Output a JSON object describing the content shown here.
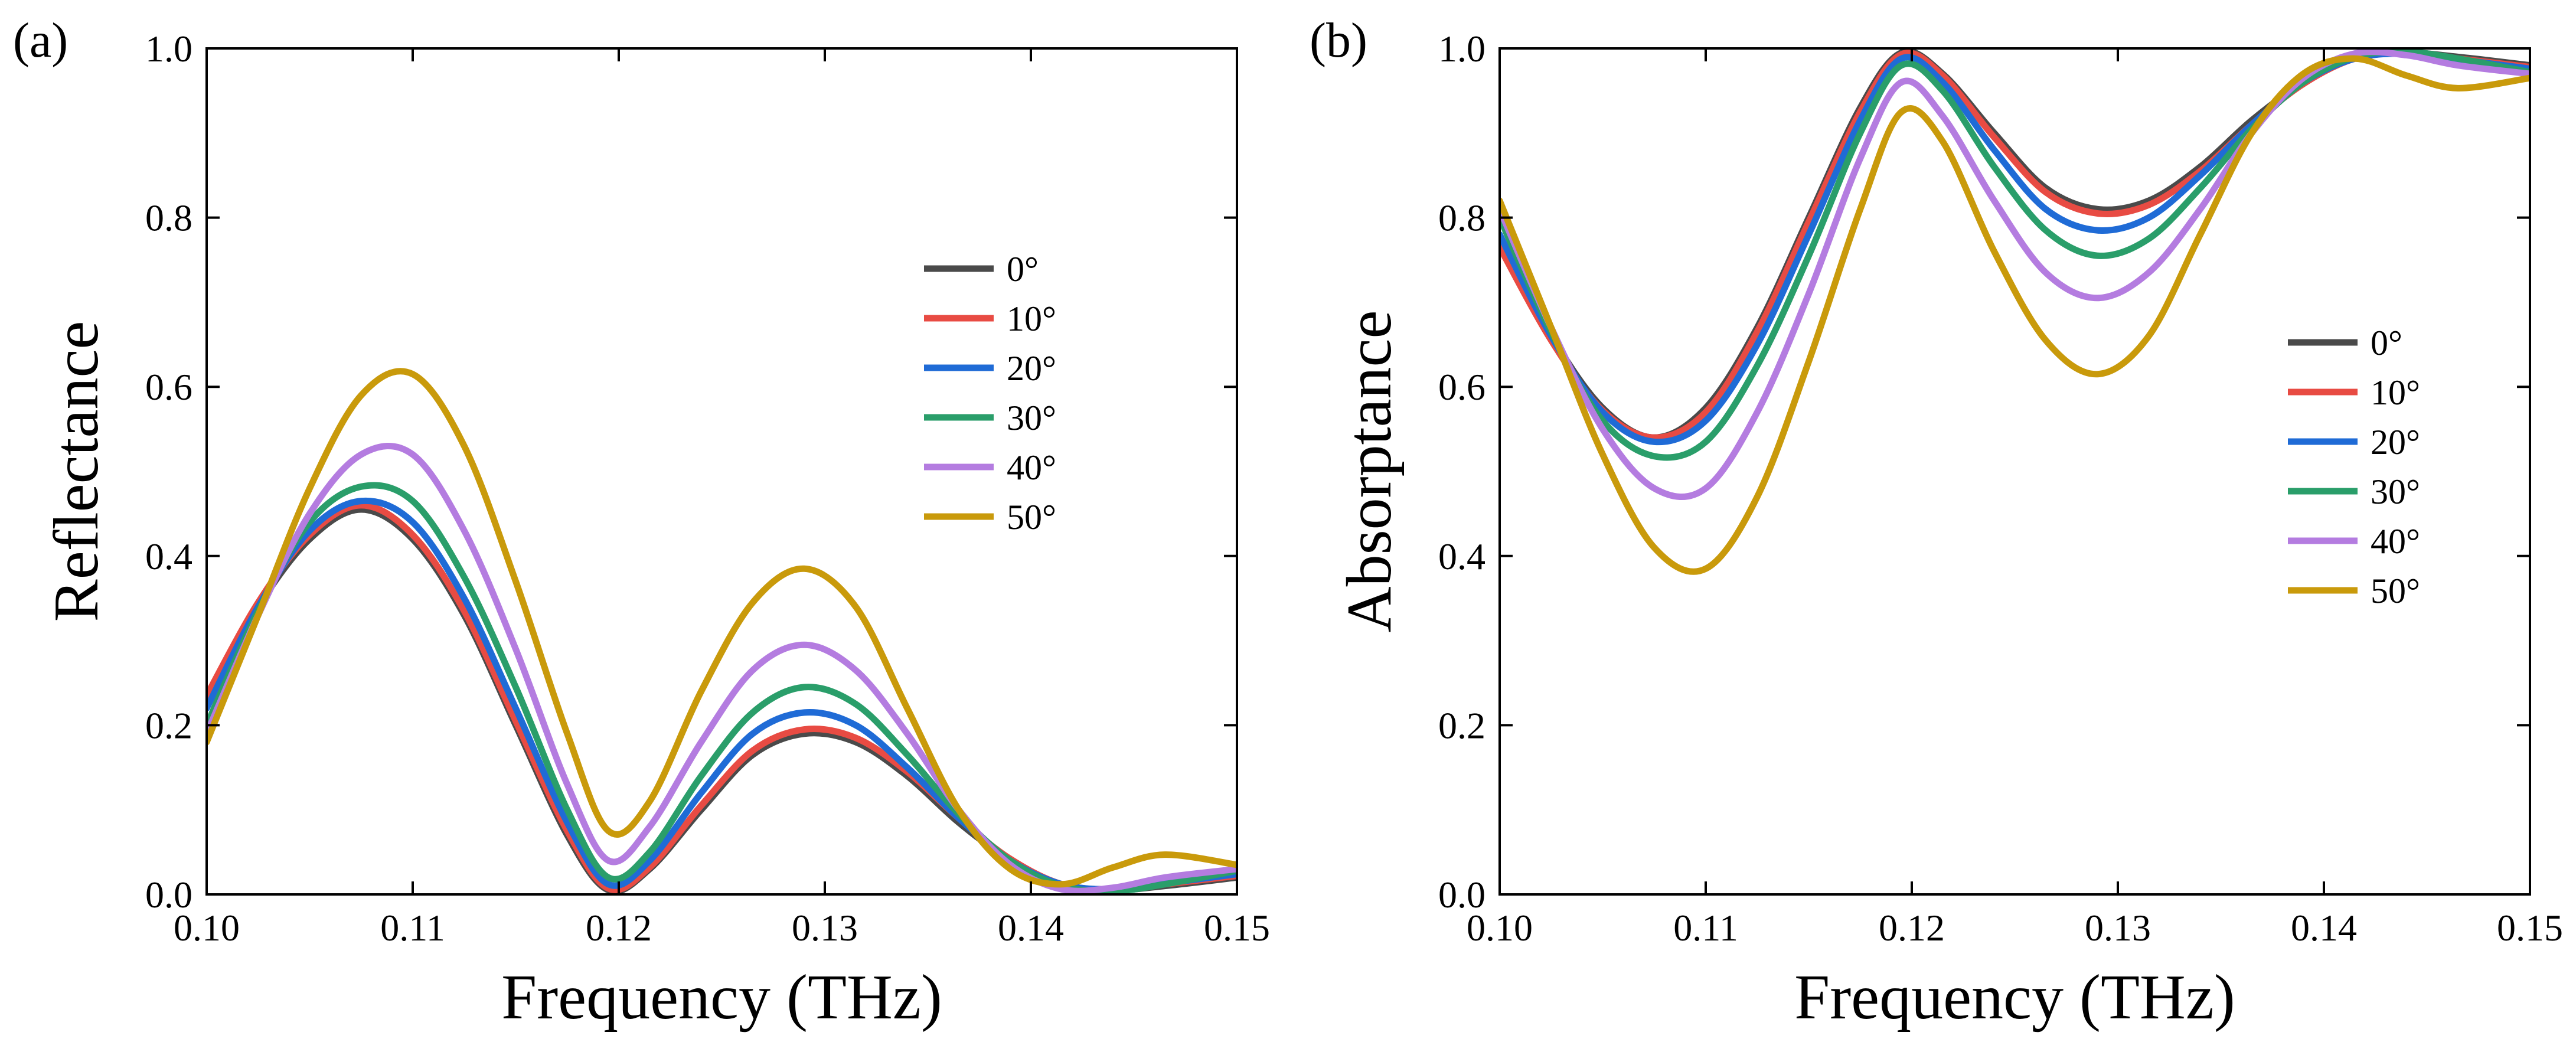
{
  "chart_data": [
    {
      "type": "line",
      "panel_label": "(a)",
      "xlabel": "Frequency (THz)",
      "ylabel": "Reflectance",
      "xlim": [
        0.1,
        0.15
      ],
      "ylim": [
        0.0,
        1.0
      ],
      "x_ticks": [
        "0.10",
        "0.11",
        "0.12",
        "0.13",
        "0.14",
        "0.15"
      ],
      "y_ticks": [
        "0.0",
        "0.2",
        "0.4",
        "0.6",
        "0.8",
        "1.0"
      ],
      "legend_position": "right",
      "series": [
        {
          "name": "0°",
          "color": "#4a4a4a",
          "x": [
            0.1,
            0.1025,
            0.105,
            0.1075,
            0.11,
            0.1125,
            0.115,
            0.1175,
            0.1195,
            0.1215,
            0.124,
            0.1265,
            0.129,
            0.1315,
            0.134,
            0.1365,
            0.139,
            0.1415,
            0.144,
            0.1465,
            0.15
          ],
          "y": [
            0.23,
            0.34,
            0.42,
            0.455,
            0.42,
            0.33,
            0.2,
            0.07,
            0.005,
            0.03,
            0.1,
            0.165,
            0.19,
            0.18,
            0.14,
            0.085,
            0.04,
            0.01,
            0.005,
            0.01,
            0.02
          ]
        },
        {
          "name": "10°",
          "color": "#e84b43",
          "x": [
            0.1,
            0.1025,
            0.105,
            0.1075,
            0.11,
            0.1125,
            0.115,
            0.1175,
            0.1195,
            0.1215,
            0.124,
            0.1265,
            0.129,
            0.1315,
            0.134,
            0.1365,
            0.139,
            0.1415,
            0.144,
            0.1465,
            0.15
          ],
          "y": [
            0.235,
            0.345,
            0.425,
            0.46,
            0.425,
            0.335,
            0.205,
            0.075,
            0.007,
            0.032,
            0.105,
            0.17,
            0.195,
            0.185,
            0.145,
            0.09,
            0.042,
            0.012,
            0.006,
            0.012,
            0.022
          ]
        },
        {
          "name": "20°",
          "color": "#1f6bd6",
          "x": [
            0.1,
            0.1025,
            0.105,
            0.1075,
            0.11,
            0.1125,
            0.115,
            0.1175,
            0.1195,
            0.1215,
            0.124,
            0.1265,
            0.129,
            0.1315,
            0.134,
            0.1365,
            0.139,
            0.1415,
            0.144,
            0.1465,
            0.15
          ],
          "y": [
            0.22,
            0.34,
            0.43,
            0.465,
            0.44,
            0.35,
            0.22,
            0.085,
            0.012,
            0.04,
            0.12,
            0.19,
            0.215,
            0.2,
            0.15,
            0.09,
            0.04,
            0.012,
            0.006,
            0.013,
            0.024
          ]
        },
        {
          "name": "30°",
          "color": "#2a9e6a",
          "x": [
            0.1,
            0.1025,
            0.105,
            0.1075,
            0.11,
            0.1125,
            0.115,
            0.1175,
            0.1195,
            0.1215,
            0.124,
            0.1265,
            0.129,
            0.1315,
            0.134,
            0.1365,
            0.139,
            0.1415,
            0.144,
            0.1465,
            0.15
          ],
          "y": [
            0.2,
            0.335,
            0.44,
            0.482,
            0.465,
            0.375,
            0.245,
            0.1,
            0.02,
            0.05,
            0.14,
            0.215,
            0.245,
            0.225,
            0.165,
            0.095,
            0.04,
            0.01,
            0.004,
            0.012,
            0.028
          ]
        },
        {
          "name": "40°",
          "color": "#b47ce0",
          "x": [
            0.1,
            0.1025,
            0.105,
            0.1075,
            0.11,
            0.1125,
            0.115,
            0.1175,
            0.1195,
            0.1215,
            0.124,
            0.1265,
            0.129,
            0.1315,
            0.134,
            0.1365,
            0.139,
            0.1415,
            0.144,
            0.1465,
            0.15
          ],
          "y": [
            0.19,
            0.33,
            0.45,
            0.52,
            0.52,
            0.43,
            0.29,
            0.13,
            0.04,
            0.08,
            0.18,
            0.265,
            0.295,
            0.265,
            0.19,
            0.1,
            0.035,
            0.006,
            0.008,
            0.02,
            0.03
          ]
        },
        {
          "name": "50°",
          "color": "#c99a0b",
          "x": [
            0.1,
            0.1025,
            0.105,
            0.1075,
            0.11,
            0.1125,
            0.115,
            0.1175,
            0.1195,
            0.1215,
            0.124,
            0.1265,
            0.129,
            0.1315,
            0.134,
            0.1365,
            0.139,
            0.1415,
            0.144,
            0.1465,
            0.15
          ],
          "y": [
            0.18,
            0.33,
            0.48,
            0.59,
            0.615,
            0.53,
            0.37,
            0.19,
            0.075,
            0.11,
            0.24,
            0.345,
            0.385,
            0.34,
            0.22,
            0.1,
            0.03,
            0.012,
            0.032,
            0.047,
            0.035
          ]
        }
      ]
    },
    {
      "type": "line",
      "panel_label": "(b)",
      "xlabel": "Frequency (THz)",
      "ylabel": "Absorptance",
      "xlim": [
        0.1,
        0.15
      ],
      "ylim": [
        0.0,
        1.0
      ],
      "x_ticks": [
        "0.10",
        "0.11",
        "0.12",
        "0.13",
        "0.14",
        "0.15"
      ],
      "y_ticks": [
        "0.0",
        "0.2",
        "0.4",
        "0.6",
        "0.8",
        "1.0"
      ],
      "legend_position": "right",
      "series": [
        {
          "name": "0°",
          "color": "#4a4a4a",
          "x": [
            0.1,
            0.1025,
            0.105,
            0.1075,
            0.11,
            0.1125,
            0.115,
            0.1175,
            0.1195,
            0.1215,
            0.124,
            0.1265,
            0.129,
            0.1315,
            0.134,
            0.1365,
            0.139,
            0.1415,
            0.144,
            0.1465,
            0.15
          ],
          "y": [
            0.77,
            0.66,
            0.575,
            0.54,
            0.575,
            0.67,
            0.8,
            0.93,
            0.995,
            0.97,
            0.9,
            0.835,
            0.81,
            0.82,
            0.86,
            0.915,
            0.96,
            0.99,
            0.995,
            0.99,
            0.98
          ]
        },
        {
          "name": "10°",
          "color": "#e84b43",
          "x": [
            0.1,
            0.1025,
            0.105,
            0.1075,
            0.11,
            0.1125,
            0.115,
            0.1175,
            0.1195,
            0.1215,
            0.124,
            0.1265,
            0.129,
            0.1315,
            0.134,
            0.1365,
            0.139,
            0.1415,
            0.144,
            0.1465,
            0.15
          ],
          "y": [
            0.765,
            0.655,
            0.572,
            0.54,
            0.57,
            0.665,
            0.795,
            0.925,
            0.993,
            0.968,
            0.895,
            0.83,
            0.805,
            0.815,
            0.855,
            0.91,
            0.958,
            0.988,
            0.994,
            0.988,
            0.978
          ]
        },
        {
          "name": "20°",
          "color": "#1f6bd6",
          "x": [
            0.1,
            0.1025,
            0.105,
            0.1075,
            0.11,
            0.1125,
            0.115,
            0.1175,
            0.1195,
            0.1215,
            0.124,
            0.1265,
            0.129,
            0.1315,
            0.134,
            0.1365,
            0.139,
            0.1415,
            0.144,
            0.1465,
            0.15
          ],
          "y": [
            0.78,
            0.66,
            0.57,
            0.535,
            0.56,
            0.65,
            0.78,
            0.915,
            0.988,
            0.96,
            0.88,
            0.81,
            0.785,
            0.8,
            0.85,
            0.91,
            0.96,
            0.988,
            0.994,
            0.987,
            0.976
          ]
        },
        {
          "name": "30°",
          "color": "#2a9e6a",
          "x": [
            0.1,
            0.1025,
            0.105,
            0.1075,
            0.11,
            0.1125,
            0.115,
            0.1175,
            0.1195,
            0.1215,
            0.124,
            0.1265,
            0.129,
            0.1315,
            0.134,
            0.1365,
            0.139,
            0.1415,
            0.144,
            0.1465,
            0.15
          ],
          "y": [
            0.8,
            0.665,
            0.56,
            0.518,
            0.535,
            0.625,
            0.755,
            0.9,
            0.98,
            0.95,
            0.86,
            0.785,
            0.755,
            0.775,
            0.835,
            0.905,
            0.96,
            0.99,
            0.996,
            0.988,
            0.972
          ]
        },
        {
          "name": "40°",
          "color": "#b47ce0",
          "x": [
            0.1,
            0.1025,
            0.105,
            0.1075,
            0.11,
            0.1125,
            0.115,
            0.1175,
            0.1195,
            0.1215,
            0.124,
            0.1265,
            0.129,
            0.1315,
            0.134,
            0.1365,
            0.139,
            0.1415,
            0.144,
            0.1465,
            0.15
          ],
          "y": [
            0.81,
            0.67,
            0.55,
            0.48,
            0.48,
            0.57,
            0.71,
            0.87,
            0.96,
            0.92,
            0.82,
            0.735,
            0.705,
            0.735,
            0.81,
            0.9,
            0.965,
            0.994,
            0.992,
            0.98,
            0.97
          ]
        },
        {
          "name": "50°",
          "color": "#c99a0b",
          "x": [
            0.1,
            0.1025,
            0.105,
            0.1075,
            0.11,
            0.1125,
            0.115,
            0.1175,
            0.1195,
            0.1215,
            0.124,
            0.1265,
            0.129,
            0.1315,
            0.134,
            0.1365,
            0.139,
            0.1415,
            0.144,
            0.1465,
            0.15
          ],
          "y": [
            0.82,
            0.67,
            0.52,
            0.41,
            0.385,
            0.47,
            0.63,
            0.81,
            0.925,
            0.89,
            0.76,
            0.655,
            0.615,
            0.66,
            0.78,
            0.9,
            0.97,
            0.988,
            0.968,
            0.953,
            0.965
          ]
        }
      ]
    }
  ]
}
